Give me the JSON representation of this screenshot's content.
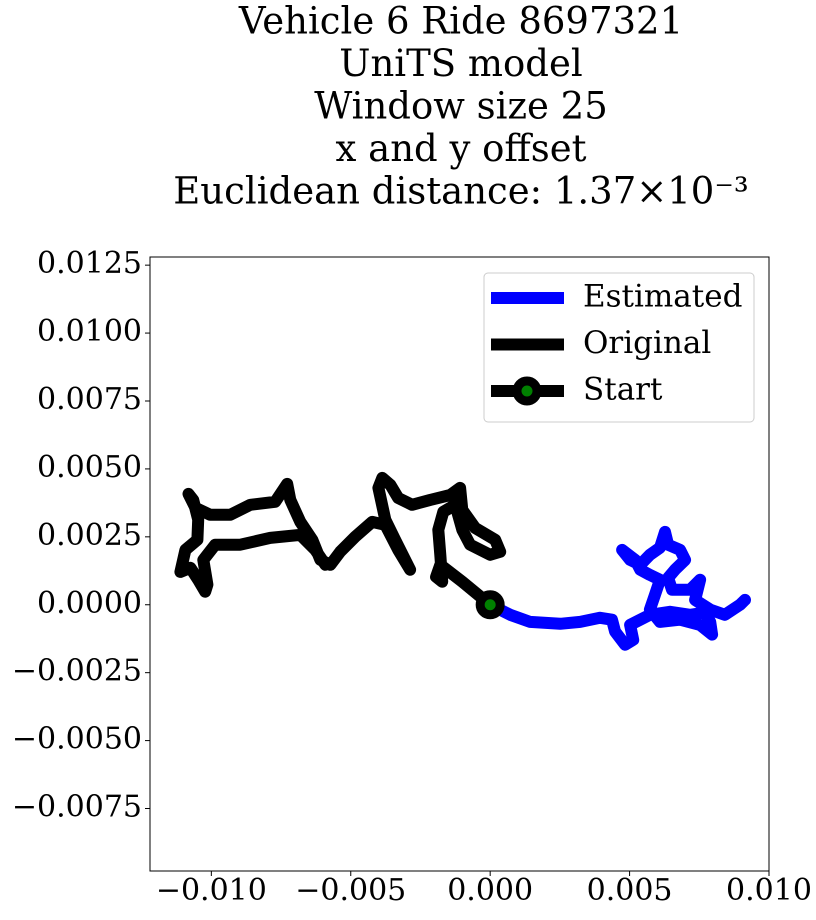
{
  "chart_data": {
    "type": "line",
    "title": [
      "Vehicle 6 Ride 8697321",
      "UniTS model",
      "Window size 25",
      "x and y offset",
      "Euclidean distance: 1.37×10⁻³"
    ],
    "xlim": [
      -0.0122,
      0.01
    ],
    "ylim": [
      -0.0098,
      0.0128
    ],
    "xticks": [
      {
        "value": -0.01,
        "label": "−0.010"
      },
      {
        "value": -0.005,
        "label": "−0.005"
      },
      {
        "value": 0,
        "label": "0.000"
      },
      {
        "value": 0.005,
        "label": "0.005"
      },
      {
        "value": 0.01,
        "label": "0.010"
      }
    ],
    "yticks": [
      {
        "value": 0.0125,
        "label": "0.0125"
      },
      {
        "value": 0.01,
        "label": "0.0100"
      },
      {
        "value": 0.0075,
        "label": "0.0075"
      },
      {
        "value": 0.005,
        "label": "0.0050"
      },
      {
        "value": 0.0025,
        "label": "0.0025"
      },
      {
        "value": 0,
        "label": "0.0000"
      },
      {
        "value": -0.0025,
        "label": "−0.0025"
      },
      {
        "value": -0.005,
        "label": "−0.0050"
      },
      {
        "value": -0.0075,
        "label": "−0.0075"
      }
    ],
    "legend": "upper right",
    "series": [
      {
        "name": "Estimated",
        "color": "#0000ff",
        "x": [
          0,
          0.00072,
          0.00143,
          0.00251,
          0.00323,
          0.00394,
          0.00437,
          0.00448,
          0.00484,
          0.00513,
          0.00502,
          0.00573,
          0.00645,
          0.00717,
          0.00771,
          0.00789,
          0.00796,
          0.00753,
          0.00681,
          0.00609,
          0.00573,
          0.00591,
          0.00609,
          0.00573,
          0.00538,
          0.0052,
          0.00473,
          0.00502,
          0.00538,
          0.00573,
          0.00609,
          0.00627,
          0.00638,
          0.00681,
          0.00699,
          0.00663,
          0.00638,
          0.00652,
          0.00717,
          0.00753,
          0.00735,
          0.00789,
          0.00842,
          0.00896,
          0.00914
        ],
        "y": [
          0,
          -0.00037,
          -0.00063,
          -0.0007,
          -0.00063,
          -0.00048,
          -0.00055,
          -0.00099,
          -0.00147,
          -0.00129,
          -0.00074,
          -0.00037,
          -0.00026,
          -0.00037,
          -0.00029,
          -0.00063,
          -0.0011,
          -0.00074,
          -0.00055,
          -0.00063,
          -0.00018,
          0.00037,
          0.00092,
          0.0011,
          0.00129,
          0.00165,
          0.00202,
          0.00165,
          0.00147,
          0.00184,
          0.0021,
          0.00268,
          0.00221,
          0.00202,
          0.00165,
          0.00129,
          0.00099,
          0.00055,
          0.00055,
          0.00092,
          0.00018,
          -0.00018,
          -0.00037,
          0,
          0.00018
        ]
      },
      {
        "name": "Original",
        "color": "#000000",
        "x": [
          0,
          -0.001,
          -0.00179,
          -0.00194,
          -0.00172,
          -0.00179,
          -0.00186,
          -0.00168,
          -0.00125,
          -0.001,
          -0.00072,
          0,
          0.00036,
          0.00018,
          -0.00054,
          -0.001,
          -0.00108,
          -0.00143,
          -0.00215,
          -0.0028,
          -0.0033,
          -0.00358,
          -0.00387,
          -0.00401,
          -0.00376,
          -0.00341,
          -0.00287,
          -0.0033,
          -0.00376,
          -0.00423,
          -0.00484,
          -0.00538,
          -0.00573,
          -0.00609,
          -0.00638,
          -0.00681,
          -0.00717,
          -0.00728,
          -0.00771,
          -0.0086,
          -0.00932,
          -0.01004,
          -0.01057,
          -0.01082,
          -0.01065,
          -0.01047,
          -0.0105,
          -0.01093,
          -0.01111,
          -0.01075,
          -0.01047,
          -0.01022,
          -0.01014,
          -0.01029,
          -0.00986,
          -0.00896,
          -0.00789,
          -0.00681,
          -0.00627,
          -0.00591
        ],
        "y": [
          0,
          0.00085,
          0.00147,
          0.00103,
          0.00085,
          0.00184,
          0.00276,
          0.00342,
          0.00368,
          0.00276,
          0.00221,
          0.00184,
          0.00195,
          0.00239,
          0.00283,
          0.00349,
          0.0043,
          0.00404,
          0.00386,
          0.00368,
          0.00393,
          0.00441,
          0.00467,
          0.0043,
          0.00313,
          0.00239,
          0.00129,
          0.00202,
          0.00294,
          0.00305,
          0.0025,
          0.00195,
          0.00147,
          0.00165,
          0.00239,
          0.00305,
          0.00386,
          0.00445,
          0.00379,
          0.00368,
          0.00331,
          0.00331,
          0.00357,
          0.00408,
          0.00386,
          0.00313,
          0.00239,
          0.00202,
          0.00121,
          0.00136,
          0.00092,
          0.00048,
          0.00074,
          0.00165,
          0.00221,
          0.00221,
          0.00246,
          0.00257,
          0.00202,
          0.00147
        ]
      },
      {
        "name": "Start",
        "color": "#000000",
        "marker_color": "#008000",
        "x": [
          0
        ],
        "y": [
          0
        ]
      }
    ]
  }
}
